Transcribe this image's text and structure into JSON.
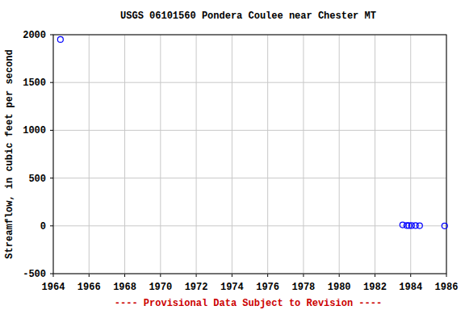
{
  "chart_data": {
    "type": "scatter",
    "title": "USGS 06101560 Pondera Coulee near Chester MT",
    "y_label": "Streamflow, in cubic feet per second",
    "annotations": [
      "---- Provisional Data Subject to Revision ----"
    ],
    "series": [
      {
        "name": "Streamflow",
        "color": "#0000ff",
        "marker": "circle",
        "x": [
          1964.4,
          1983.55,
          1983.78,
          1983.9,
          1984.05,
          1984.27,
          1984.5,
          1985.9
        ],
        "values": [
          1950,
          10,
          4,
          3,
          3,
          3,
          2,
          0
        ]
      }
    ],
    "xlim": [
      1964,
      1986
    ],
    "xticks": [
      1964,
      1966,
      1968,
      1970,
      1972,
      1974,
      1976,
      1978,
      1980,
      1982,
      1984,
      1986
    ],
    "ylim": [
      -500,
      2000
    ],
    "yticks": [
      -500,
      0,
      500,
      1000,
      1500,
      2000
    ],
    "grid": true
  }
}
